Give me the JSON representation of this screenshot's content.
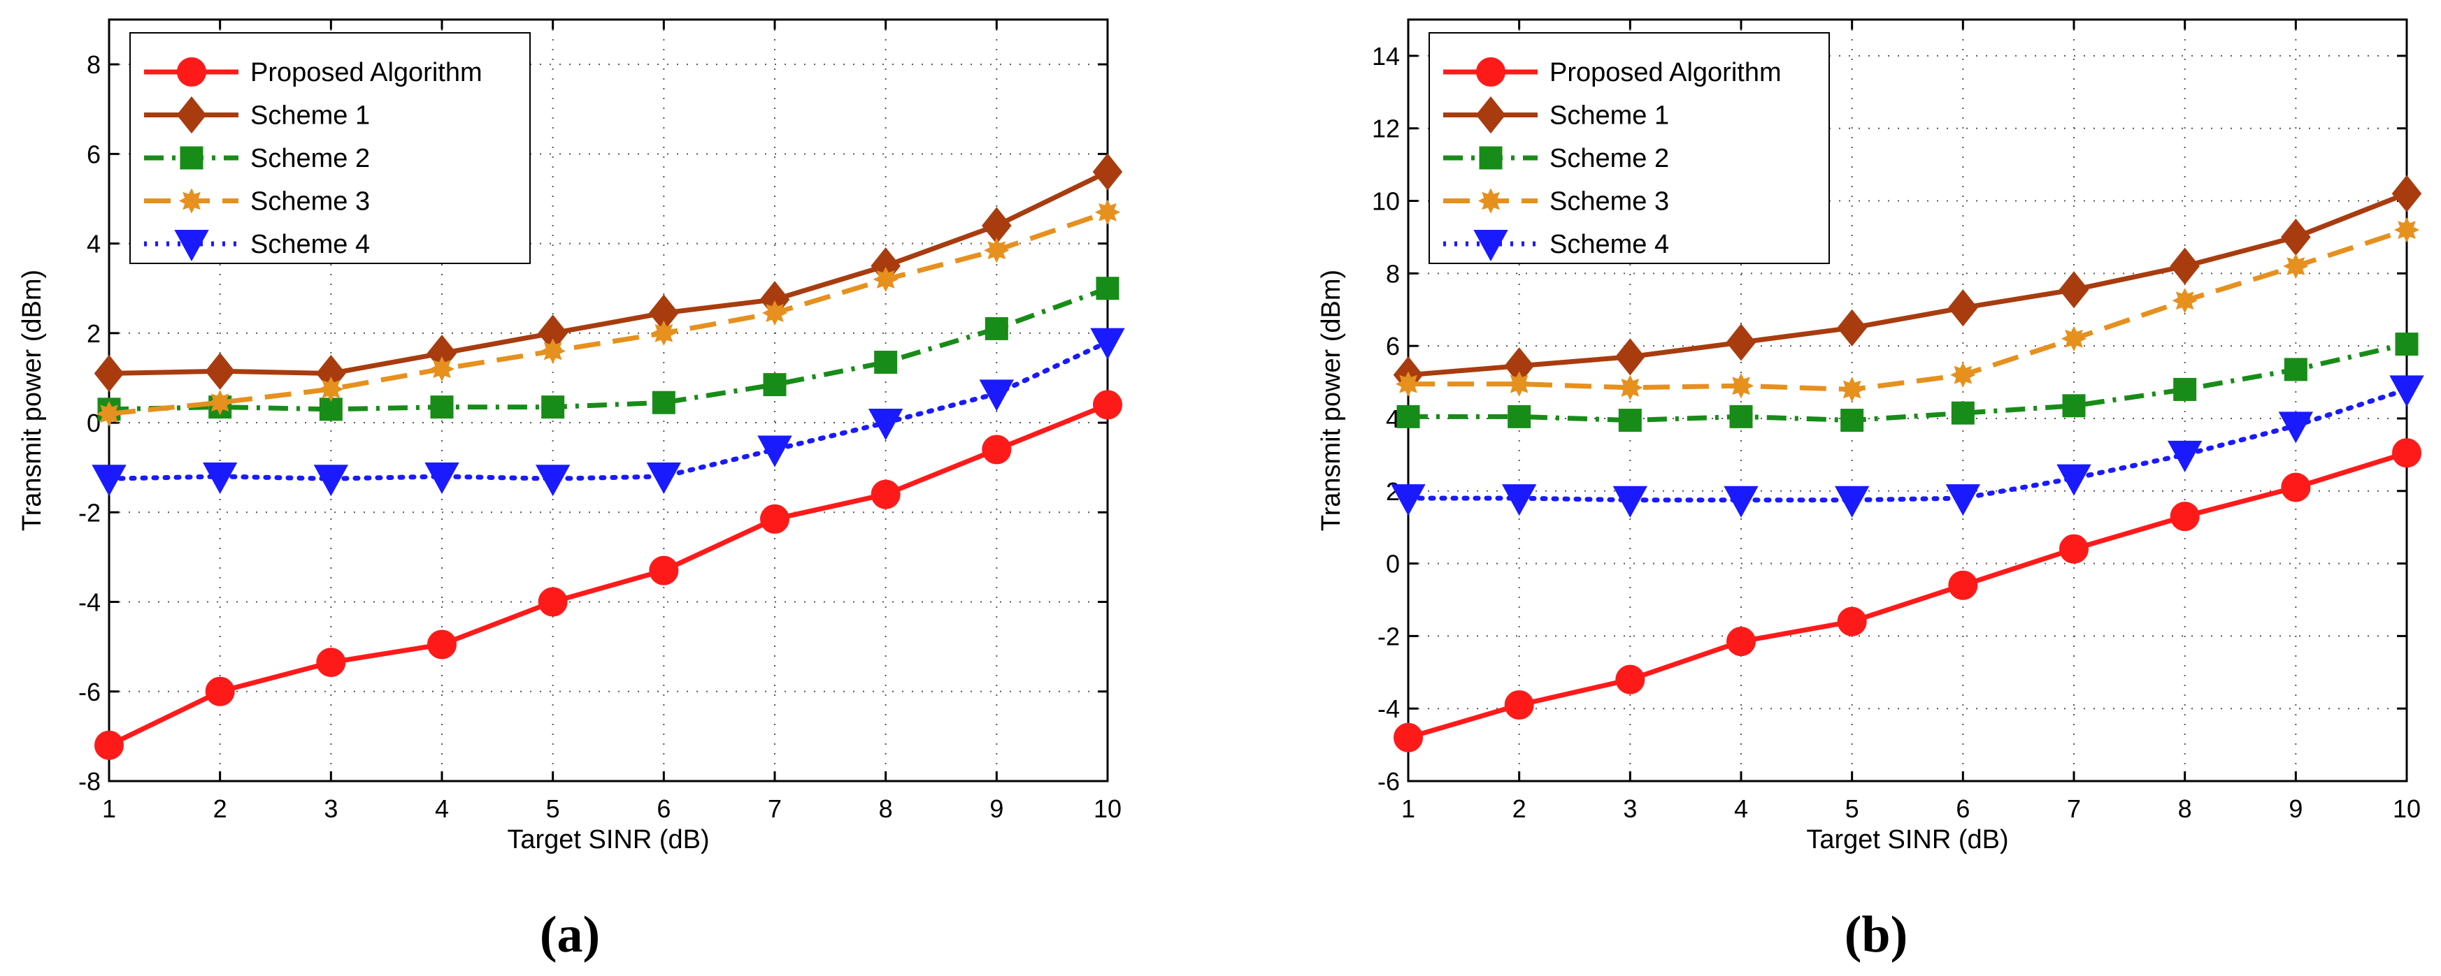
{
  "figure": {
    "panel_labels": [
      "(a)",
      "(b)"
    ]
  },
  "chart_data": [
    {
      "type": "line",
      "panel": "(a)",
      "title": "",
      "xlabel": "Target SINR (dB)",
      "ylabel": "Transmit power (dBm)",
      "xlim": [
        1,
        10
      ],
      "ylim": [
        -8,
        9
      ],
      "xticks": [
        1,
        2,
        3,
        4,
        5,
        6,
        7,
        8,
        9,
        10
      ],
      "yticks": [
        -8,
        -6,
        -4,
        -2,
        0,
        2,
        4,
        6,
        8
      ],
      "grid": true,
      "legend_position": "top-left",
      "x": [
        1,
        2,
        3,
        4,
        5,
        6,
        7,
        8,
        9,
        10
      ],
      "series": [
        {
          "name": "Proposed Algorithm",
          "color": "#ff1a1a",
          "marker": "circle",
          "dash": "solid",
          "values": [
            -7.2,
            -6.0,
            -5.35,
            -4.95,
            -4.0,
            -3.3,
            -2.15,
            -1.6,
            -0.6,
            0.4
          ]
        },
        {
          "name": "Scheme 1",
          "color": "#a83c0f",
          "marker": "diamond",
          "dash": "solid",
          "values": [
            1.1,
            1.15,
            1.1,
            1.55,
            2.0,
            2.45,
            2.75,
            3.5,
            4.4,
            5.6
          ]
        },
        {
          "name": "Scheme 2",
          "color": "#188c18",
          "marker": "square",
          "dash": "dashdot",
          "values": [
            0.3,
            0.35,
            0.3,
            0.35,
            0.35,
            0.45,
            0.85,
            1.35,
            2.1,
            3.0
          ]
        },
        {
          "name": "Scheme 3",
          "color": "#e6901e",
          "marker": "star",
          "dash": "dashed",
          "values": [
            0.2,
            0.45,
            0.75,
            1.2,
            1.6,
            2.0,
            2.45,
            3.2,
            3.85,
            4.7
          ]
        },
        {
          "name": "Scheme 4",
          "color": "#1a1aff",
          "marker": "triangle-down",
          "dash": "dotted",
          "values": [
            -1.25,
            -1.2,
            -1.25,
            -1.2,
            -1.25,
            -1.2,
            -0.6,
            0.0,
            0.65,
            1.8
          ]
        }
      ]
    },
    {
      "type": "line",
      "panel": "(b)",
      "title": "",
      "xlabel": "Target SINR (dB)",
      "ylabel": "Transmit power (dBm)",
      "xlim": [
        1,
        10
      ],
      "ylim": [
        -6,
        15
      ],
      "xticks": [
        1,
        2,
        3,
        4,
        5,
        6,
        7,
        8,
        9,
        10
      ],
      "yticks": [
        -6,
        -4,
        -2,
        0,
        2,
        4,
        6,
        8,
        10,
        12,
        14
      ],
      "grid": true,
      "legend_position": "top-left",
      "x": [
        1,
        2,
        3,
        4,
        5,
        6,
        7,
        8,
        9,
        10
      ],
      "series": [
        {
          "name": "Proposed Algorithm",
          "color": "#ff1a1a",
          "marker": "circle",
          "dash": "solid",
          "values": [
            -4.8,
            -3.9,
            -3.2,
            -2.15,
            -1.6,
            -0.6,
            0.4,
            1.3,
            2.1,
            3.05
          ]
        },
        {
          "name": "Scheme 1",
          "color": "#a83c0f",
          "marker": "diamond",
          "dash": "solid",
          "values": [
            5.2,
            5.45,
            5.7,
            6.1,
            6.5,
            7.05,
            7.55,
            8.2,
            9.0,
            10.2
          ]
        },
        {
          "name": "Scheme 2",
          "color": "#188c18",
          "marker": "square",
          "dash": "dashdot",
          "values": [
            4.05,
            4.05,
            3.95,
            4.05,
            3.95,
            4.15,
            4.35,
            4.8,
            5.35,
            6.05
          ]
        },
        {
          "name": "Scheme 3",
          "color": "#e6901e",
          "marker": "star",
          "dash": "dashed",
          "values": [
            4.95,
            4.95,
            4.85,
            4.9,
            4.8,
            5.2,
            6.2,
            7.25,
            8.2,
            9.2
          ]
        },
        {
          "name": "Scheme 4",
          "color": "#1a1aff",
          "marker": "triangle-down",
          "dash": "dotted",
          "values": [
            1.8,
            1.8,
            1.75,
            1.75,
            1.75,
            1.8,
            2.35,
            3.0,
            3.8,
            4.8
          ]
        }
      ]
    }
  ]
}
